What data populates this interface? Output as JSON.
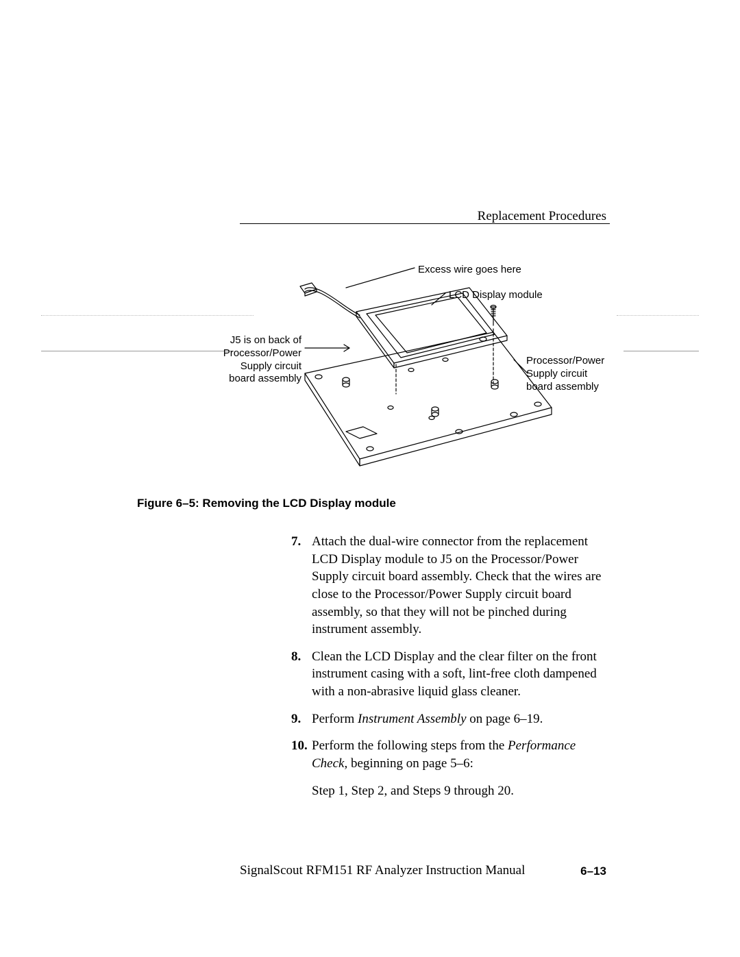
{
  "header": "Replacement Procedures",
  "diagram": {
    "callouts": {
      "excess_wire": "Excess wire goes here",
      "lcd_module": "LCD Display module",
      "j5_back": "J5 is on back of\nProcessor/Power\nSupply circuit\nboard assembly",
      "proc_power": "Processor/Power\nSupply circuit\nboard assembly"
    },
    "stroke_color": "#000000",
    "stroke_width": 1.2,
    "fill": "none"
  },
  "figure_caption": "Figure 6–5: Removing the LCD Display module",
  "steps": [
    {
      "num": "7.",
      "html": "Attach the dual-wire connector from the replacement LCD Display module to J5 on the Processor/Power Supply circuit board assembly. Check that the wires are close to the Processor/Power Supply circuit board assembly, so that they will not be pinched during instrument assembly."
    },
    {
      "num": "8.",
      "html": "Clean the LCD Display and the clear filter on the front instrument casing with a soft, lint-free cloth dampened with a non-abrasive liquid glass cleaner."
    },
    {
      "num": "9.",
      "html": "Perform <em>Instrument Assembly</em> on page 6–19."
    },
    {
      "num": "10.",
      "html": "Perform the following steps from the <em>Performance Check,</em> beginning on page 5–6:"
    }
  ],
  "trailing_line": "Step 1, Step 2, and Steps 9 through 20.",
  "footer": {
    "left": "SignalScout RFM151 RF Analyzer Instruction Manual",
    "right": "6–13"
  }
}
